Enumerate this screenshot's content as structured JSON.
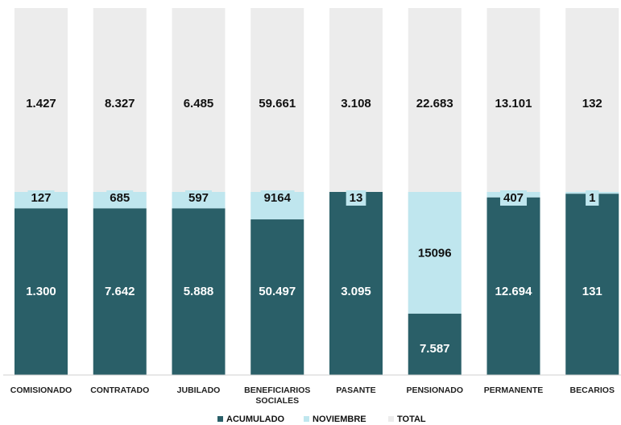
{
  "chart_data": {
    "type": "bar",
    "stacked": true,
    "categories": [
      [
        "COMISIONADO"
      ],
      [
        "CONTRATADO"
      ],
      [
        "JUBILADO"
      ],
      [
        "BENEFICIARIOS",
        "SOCIALES"
      ],
      [
        "PASANTE"
      ],
      [
        "PENSIONADO"
      ],
      [
        "PERMANENTE"
      ],
      [
        "BECARIOS"
      ]
    ],
    "category_names": [
      "COMISIONADO",
      "CONTRATADO",
      "JUBILADO",
      "BENEFICIARIOS SOCIALES",
      "PASANTE",
      "PENSIONADO",
      "PERMANENTE",
      "BECARIOS"
    ],
    "fractions": {
      "acumulado": [
        0.91,
        0.91,
        0.91,
        0.85,
        1.0,
        0.335,
        0.97,
        0.99
      ],
      "noviembre": [
        0.09,
        0.09,
        0.09,
        0.15,
        0.0,
        0.665,
        0.03,
        0.01
      ]
    },
    "series": [
      {
        "name": "ACUMULADO",
        "values": [
          1300,
          7642,
          5888,
          50497,
          3095,
          7587,
          12694,
          131
        ],
        "labels": [
          "1.300",
          "7.642",
          "5.888",
          "50.497",
          "3.095",
          "7.587",
          "12.694",
          "131"
        ],
        "color": "#2a5f68"
      },
      {
        "name": "NOVIEMBRE",
        "values": [
          127,
          685,
          597,
          9164,
          13,
          15096,
          407,
          1
        ],
        "labels": [
          "127",
          "685",
          "597",
          "9164",
          "13",
          "15096",
          "407",
          "1"
        ],
        "color": "#bfe6ee"
      },
      {
        "name": "TOTAL",
        "values": [
          1427,
          8327,
          6485,
          59661,
          3108,
          22683,
          13101,
          132
        ],
        "labels": [
          "1.427",
          "8.327",
          "6.485",
          "59.661",
          "3.108",
          "22.683",
          "13.101",
          "132"
        ],
        "color": "#ececec"
      }
    ],
    "legend": {
      "position": "bottom",
      "items": [
        "ACUMULADO",
        "NOVIEMBRE",
        "TOTAL"
      ]
    },
    "title": "",
    "xlabel": "",
    "ylabel": "",
    "grid": false
  }
}
